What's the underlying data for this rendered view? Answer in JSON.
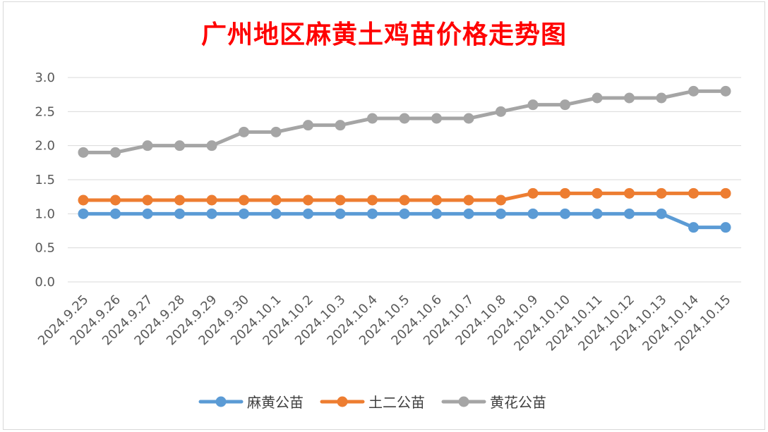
{
  "chart_data": {
    "type": "line",
    "title": "广州地区麻黄土鸡苗价格走势图",
    "xlabel": "",
    "ylabel": "",
    "ylim": [
      0,
      3.0
    ],
    "yticks": [
      "0.0",
      "0.5",
      "1.0",
      "1.5",
      "2.0",
      "2.5",
      "3.0"
    ],
    "grid": true,
    "legend_position": "bottom",
    "categories": [
      "2024.9.25",
      "2024.9.26",
      "2024.9.27",
      "2024.9.28",
      "2024.9.29",
      "2024.9.30",
      "2024.10.1",
      "2024.10.2",
      "2024.10.3",
      "2024.10.4",
      "2024.10.5",
      "2024.10.6",
      "2024.10.7",
      "2024.10.8",
      "2024.10.9",
      "2024.10.10",
      "2024.10.11",
      "2024.10.12",
      "2024.10.13",
      "2024.10.14",
      "2024.10.15"
    ],
    "series": [
      {
        "name": "麻黄公苗",
        "color": "#5b9bd5",
        "values": [
          1.0,
          1.0,
          1.0,
          1.0,
          1.0,
          1.0,
          1.0,
          1.0,
          1.0,
          1.0,
          1.0,
          1.0,
          1.0,
          1.0,
          1.0,
          1.0,
          1.0,
          1.0,
          1.0,
          0.8,
          0.8
        ]
      },
      {
        "name": "土二公苗",
        "color": "#ed7d31",
        "values": [
          1.2,
          1.2,
          1.2,
          1.2,
          1.2,
          1.2,
          1.2,
          1.2,
          1.2,
          1.2,
          1.2,
          1.2,
          1.2,
          1.2,
          1.3,
          1.3,
          1.3,
          1.3,
          1.3,
          1.3,
          1.3
        ]
      },
      {
        "name": "黄花公苗",
        "color": "#a5a5a5",
        "values": [
          1.9,
          1.9,
          2.0,
          2.0,
          2.0,
          2.2,
          2.2,
          2.3,
          2.3,
          2.4,
          2.4,
          2.4,
          2.4,
          2.5,
          2.6,
          2.6,
          2.7,
          2.7,
          2.7,
          2.8,
          2.8
        ]
      }
    ]
  }
}
